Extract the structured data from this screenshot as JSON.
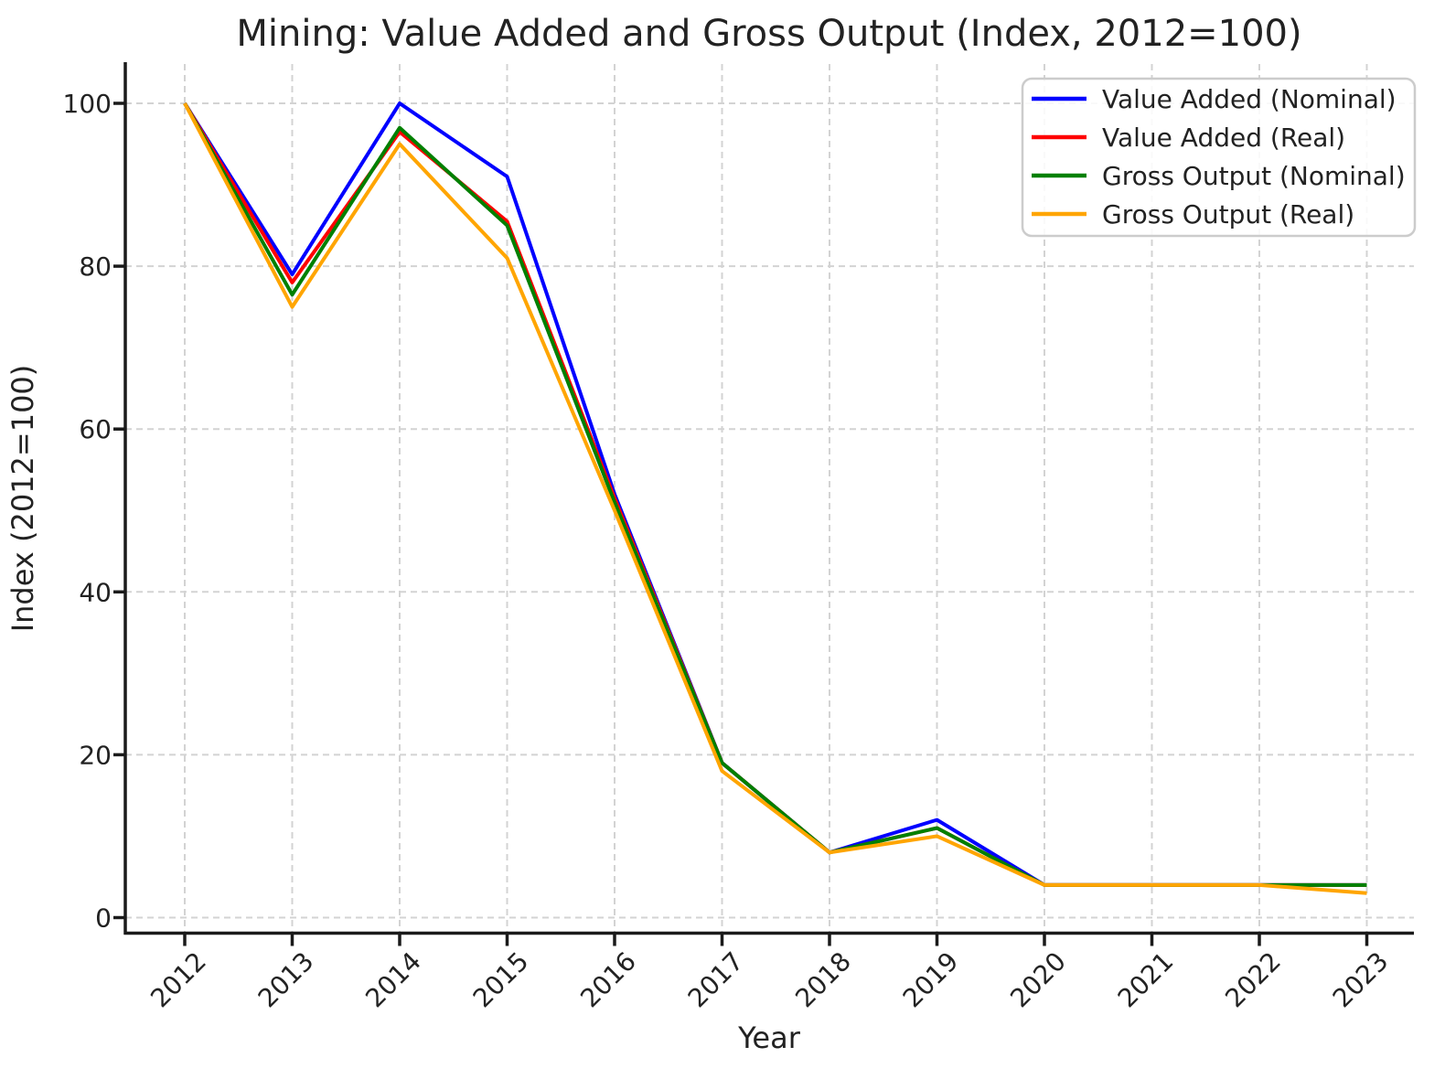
{
  "chart_data": {
    "type": "line",
    "title": "Mining: Value Added and Gross Output (Index, 2012=100)",
    "xlabel": "Year",
    "ylabel": "Index (2012=100)",
    "categories": [
      "2012",
      "2013",
      "2014",
      "2015",
      "2016",
      "2017",
      "2018",
      "2019",
      "2020",
      "2021",
      "2022",
      "2023"
    ],
    "yticks": [
      0,
      20,
      40,
      60,
      80,
      100
    ],
    "ylim": [
      -2,
      105
    ],
    "grid": "dashed",
    "legend_position": "upper right",
    "series": [
      {
        "name": "Value Added (Nominal)",
        "color": "#0000ff",
        "values": [
          100,
          79,
          100,
          91,
          52,
          19,
          8,
          12,
          4,
          4,
          4,
          4
        ]
      },
      {
        "name": "Value Added (Real)",
        "color": "#ff0000",
        "values": [
          100,
          78,
          96.5,
          85.5,
          51.5,
          19,
          8,
          11,
          4,
          4,
          4,
          4
        ]
      },
      {
        "name": "Gross Output (Nominal)",
        "color": "#008000",
        "values": [
          100,
          76.5,
          97,
          85,
          51,
          19,
          8,
          11,
          4,
          4,
          4,
          4
        ]
      },
      {
        "name": "Gross Output (Real)",
        "color": "#ffa500",
        "values": [
          100,
          75,
          95,
          81,
          50,
          18,
          8,
          10,
          4,
          4,
          4,
          3
        ]
      }
    ]
  },
  "style": {
    "grid_color": "#d3d3d3",
    "axis_color": "#1a1a1a",
    "text_color": "#222222",
    "legend_border_color": "#cccccc",
    "legend_background": "rgba(255,255,255,0.85)"
  }
}
